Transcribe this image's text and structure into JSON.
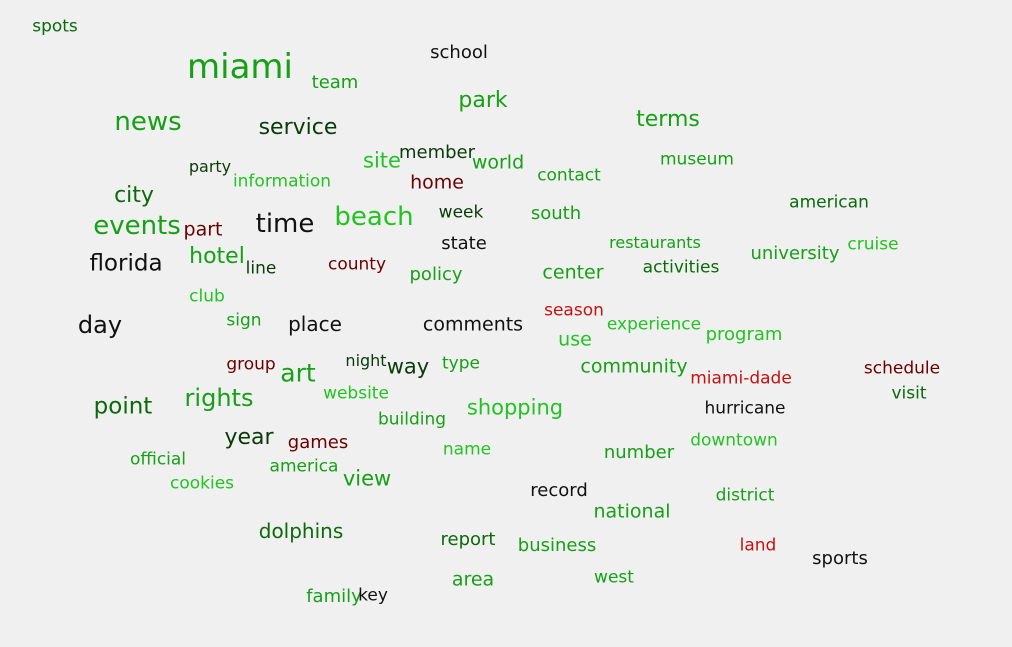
{
  "colors": {
    "bright_green": "#22c322",
    "green": "#16a016",
    "dark_green": "#0a6a0a",
    "black": "#111111",
    "dark_red": "#6a0000",
    "red": "#c81010",
    "background": "#f0f0f0"
  },
  "words": [
    {
      "text": "spots",
      "color": "#0a6a0a"
    },
    {
      "text": "miami",
      "color": "#16a016"
    },
    {
      "text": "school",
      "color": "#111111"
    },
    {
      "text": "team",
      "color": "#16a016"
    },
    {
      "text": "park",
      "color": "#16a016"
    },
    {
      "text": "news",
      "color": "#16a016"
    },
    {
      "text": "service",
      "color": "#0a3a0a"
    },
    {
      "text": "terms",
      "color": "#16a016"
    },
    {
      "text": "member",
      "color": "#0a3a0a"
    },
    {
      "text": "site",
      "color": "#22c322"
    },
    {
      "text": "world",
      "color": "#16a016"
    },
    {
      "text": "museum",
      "color": "#16a016"
    },
    {
      "text": "party",
      "color": "#0a3a0a"
    },
    {
      "text": "information",
      "color": "#22c322"
    },
    {
      "text": "home",
      "color": "#6a0000"
    },
    {
      "text": "contact",
      "color": "#16a016"
    },
    {
      "text": "city",
      "color": "#0a6a0a"
    },
    {
      "text": "american",
      "color": "#0a6a0a"
    },
    {
      "text": "events",
      "color": "#16a016"
    },
    {
      "text": "part",
      "color": "#6a0000"
    },
    {
      "text": "time",
      "color": "#111111"
    },
    {
      "text": "beach",
      "color": "#22c322"
    },
    {
      "text": "week",
      "color": "#0a3a0a"
    },
    {
      "text": "south",
      "color": "#16a016"
    },
    {
      "text": "restaurants",
      "color": "#16a016"
    },
    {
      "text": "cruise",
      "color": "#22c322"
    },
    {
      "text": "university",
      "color": "#16a016"
    },
    {
      "text": "state",
      "color": "#111111"
    },
    {
      "text": "florida",
      "color": "#111111"
    },
    {
      "text": "hotel",
      "color": "#16a016"
    },
    {
      "text": "line",
      "color": "#0a3a0a"
    },
    {
      "text": "county",
      "color": "#6a0000"
    },
    {
      "text": "policy",
      "color": "#16a016"
    },
    {
      "text": "center",
      "color": "#16a016"
    },
    {
      "text": "activities",
      "color": "#0a6a0a"
    },
    {
      "text": "club",
      "color": "#22c322"
    },
    {
      "text": "season",
      "color": "#c81010"
    },
    {
      "text": "day",
      "color": "#111111"
    },
    {
      "text": "sign",
      "color": "#16a016"
    },
    {
      "text": "place",
      "color": "#111111"
    },
    {
      "text": "comments",
      "color": "#111111"
    },
    {
      "text": "experience",
      "color": "#22c322"
    },
    {
      "text": "use",
      "color": "#22c322"
    },
    {
      "text": "program",
      "color": "#22c322"
    },
    {
      "text": "night",
      "color": "#0a3a0a"
    },
    {
      "text": "group",
      "color": "#6a0000"
    },
    {
      "text": "way",
      "color": "#0a3a0a"
    },
    {
      "text": "type",
      "color": "#16a016"
    },
    {
      "text": "art",
      "color": "#16a016"
    },
    {
      "text": "community",
      "color": "#16a016"
    },
    {
      "text": "schedule",
      "color": "#6a0000"
    },
    {
      "text": "miami-dade",
      "color": "#c81010"
    },
    {
      "text": "rights",
      "color": "#16a016"
    },
    {
      "text": "website",
      "color": "#22c322"
    },
    {
      "text": "visit",
      "color": "#0a6a0a"
    },
    {
      "text": "point",
      "color": "#0a6a0a"
    },
    {
      "text": "shopping",
      "color": "#22c322"
    },
    {
      "text": "hurricane",
      "color": "#111111"
    },
    {
      "text": "building",
      "color": "#16a016"
    },
    {
      "text": "year",
      "color": "#0a3a0a"
    },
    {
      "text": "games",
      "color": "#6a0000"
    },
    {
      "text": "downtown",
      "color": "#22c322"
    },
    {
      "text": "name",
      "color": "#22c322"
    },
    {
      "text": "number",
      "color": "#16a016"
    },
    {
      "text": "official",
      "color": "#16a016"
    },
    {
      "text": "america",
      "color": "#16a016"
    },
    {
      "text": "view",
      "color": "#16a016"
    },
    {
      "text": "cookies",
      "color": "#22c322"
    },
    {
      "text": "record",
      "color": "#111111"
    },
    {
      "text": "district",
      "color": "#16a016"
    },
    {
      "text": "national",
      "color": "#16a016"
    },
    {
      "text": "dolphins",
      "color": "#0a6a0a"
    },
    {
      "text": "report",
      "color": "#0a6a0a"
    },
    {
      "text": "business",
      "color": "#16a016"
    },
    {
      "text": "land",
      "color": "#c81010"
    },
    {
      "text": "sports",
      "color": "#111111"
    },
    {
      "text": "area",
      "color": "#16a016"
    },
    {
      "text": "west",
      "color": "#16a016"
    },
    {
      "text": "family",
      "color": "#16a016"
    },
    {
      "text": "key",
      "color": "#111111"
    }
  ]
}
